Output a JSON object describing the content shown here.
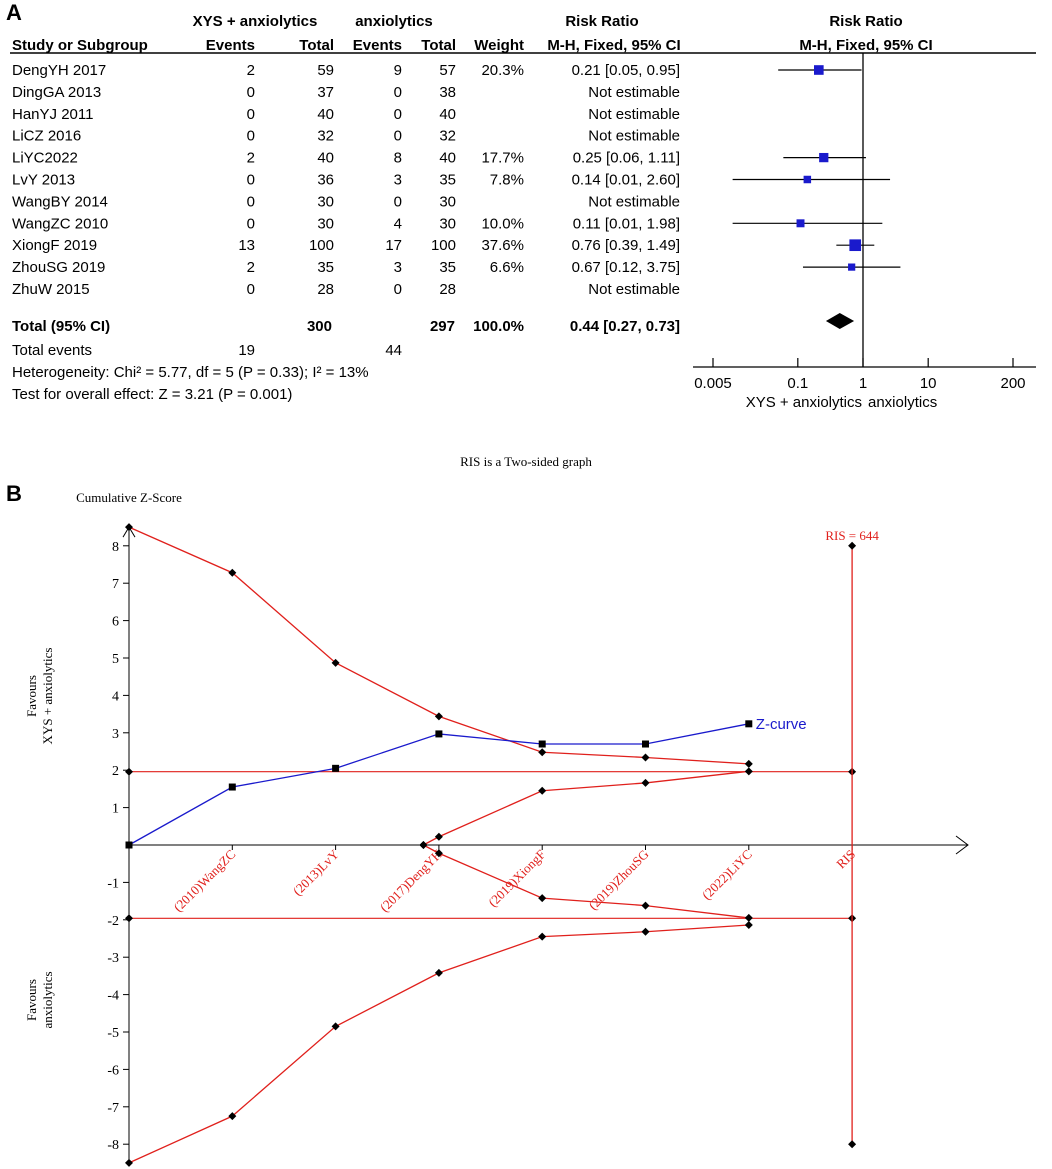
{
  "chart_data": [
    {
      "type": "forest",
      "panel": "A",
      "headers": {
        "group1": "XYS + anxiolytics",
        "group2": "anxiolytics",
        "rr_text": "Risk Ratio",
        "rr_plot": "Risk Ratio",
        "study": "Study or Subgroup",
        "events1": "Events",
        "total1": "Total",
        "events2": "Events",
        "total2": "Total",
        "weight": "Weight",
        "method_text": "M-H, Fixed, 95% CI",
        "method_plot": "M-H, Fixed, 95% CI"
      },
      "studies": [
        {
          "name": "DengYH 2017",
          "e1": "2",
          "t1": "59",
          "e2": "9",
          "t2": "57",
          "weight": "20.3%",
          "ci_text": "0.21 [0.05, 0.95]",
          "rr": 0.21,
          "lo": 0.05,
          "hi": 0.95,
          "w": 20.3
        },
        {
          "name": "DingGA 2013",
          "e1": "0",
          "t1": "37",
          "e2": "0",
          "t2": "38",
          "weight": "",
          "ci_text": "Not estimable",
          "rr": null,
          "lo": null,
          "hi": null,
          "w": 0
        },
        {
          "name": "HanYJ 2011",
          "e1": "0",
          "t1": "40",
          "e2": "0",
          "t2": "40",
          "weight": "",
          "ci_text": "Not estimable",
          "rr": null,
          "lo": null,
          "hi": null,
          "w": 0
        },
        {
          "name": "LiCZ 2016",
          "e1": "0",
          "t1": "32",
          "e2": "0",
          "t2": "32",
          "weight": "",
          "ci_text": "Not estimable",
          "rr": null,
          "lo": null,
          "hi": null,
          "w": 0
        },
        {
          "name": "LiYC2022",
          "e1": "2",
          "t1": "40",
          "e2": "8",
          "t2": "40",
          "weight": "17.7%",
          "ci_text": "0.25 [0.06, 1.11]",
          "rr": 0.25,
          "lo": 0.06,
          "hi": 1.11,
          "w": 17.7
        },
        {
          "name": "LvY 2013",
          "e1": "0",
          "t1": "36",
          "e2": "3",
          "t2": "35",
          "weight": "7.8%",
          "ci_text": "0.14 [0.01, 2.60]",
          "rr": 0.14,
          "lo": 0.01,
          "hi": 2.6,
          "w": 7.8
        },
        {
          "name": "WangBY 2014",
          "e1": "0",
          "t1": "30",
          "e2": "0",
          "t2": "30",
          "weight": "",
          "ci_text": "Not estimable",
          "rr": null,
          "lo": null,
          "hi": null,
          "w": 0
        },
        {
          "name": "WangZC 2010",
          "e1": "0",
          "t1": "30",
          "e2": "4",
          "t2": "30",
          "weight": "10.0%",
          "ci_text": "0.11 [0.01, 1.98]",
          "rr": 0.11,
          "lo": 0.01,
          "hi": 1.98,
          "w": 10.0
        },
        {
          "name": "XiongF 2019",
          "e1": "13",
          "t1": "100",
          "e2": "17",
          "t2": "100",
          "weight": "37.6%",
          "ci_text": "0.76 [0.39, 1.49]",
          "rr": 0.76,
          "lo": 0.39,
          "hi": 1.49,
          "w": 37.6
        },
        {
          "name": "ZhouSG 2019",
          "e1": "2",
          "t1": "35",
          "e2": "3",
          "t2": "35",
          "weight": "6.6%",
          "ci_text": "0.67 [0.12, 3.75]",
          "rr": 0.67,
          "lo": 0.12,
          "hi": 3.75,
          "w": 6.6
        },
        {
          "name": "ZhuW 2015",
          "e1": "0",
          "t1": "28",
          "e2": "0",
          "t2": "28",
          "weight": "",
          "ci_text": "Not estimable",
          "rr": null,
          "lo": null,
          "hi": null,
          "w": 0
        }
      ],
      "total": {
        "name": "Total (95% CI)",
        "t1": "300",
        "t2": "297",
        "weight": "100.0%",
        "ci_text": "0.44 [0.27, 0.73]",
        "rr": 0.44,
        "lo": 0.27,
        "hi": 0.73
      },
      "total_events": {
        "label": "Total events",
        "e1": "19",
        "e2": "44"
      },
      "heterogeneity": "Heterogeneity: Chi² = 5.77, df = 5 (P = 0.33); I² = 13%",
      "overall_effect": "Test for overall effect: Z = 3.21 (P = 0.001)",
      "axis": {
        "scale": "log",
        "ticks": [
          0.005,
          0.1,
          1,
          10,
          200
        ],
        "tick_labels": [
          "0.005",
          "0.1",
          "1",
          "10",
          "200"
        ],
        "favours_left": "XYS + anxiolytics",
        "favours_right": "anxiolytics"
      }
    },
    {
      "type": "line",
      "panel": "B",
      "title": "RIS is a Two-sided graph",
      "ylabel": "Cumulative Z-Score",
      "ylim": [
        -8.5,
        8.5
      ],
      "yticks": [
        8,
        7,
        6,
        5,
        4,
        3,
        2,
        1,
        -1,
        -2,
        -3,
        -4,
        -5,
        -6,
        -7,
        -8
      ],
      "categories": [
        "(2010)WangZC",
        "(2013)LvY",
        "(2017)DengYH",
        "(2019)XiongF",
        "(2019)ZhouSG",
        "(2022)LiYC",
        "RIS"
      ],
      "x_positions": [
        0,
        1,
        2,
        3,
        4,
        5,
        6,
        7
      ],
      "favours_top": [
        "Favours",
        "XYS + anxiolytics"
      ],
      "favours_bottom": [
        "Favours",
        "anxiolytics"
      ],
      "z_curve": {
        "name": "Z-curve",
        "x": [
          0,
          1,
          2,
          3,
          4,
          5,
          6
        ],
        "y": [
          0,
          1.55,
          2.05,
          2.97,
          2.7,
          2.7,
          3.24
        ]
      },
      "upper_benefit_boundary": {
        "x": [
          0,
          1,
          2,
          3,
          4,
          5,
          6
        ],
        "y": [
          8.5,
          7.28,
          4.87,
          3.44,
          2.48,
          2.34,
          2.17
        ]
      },
      "lower_harm_boundary": {
        "x": [
          0,
          1,
          2,
          3,
          4,
          5,
          6
        ],
        "y": [
          -8.5,
          -7.25,
          -4.85,
          -3.42,
          -2.45,
          -2.32,
          -2.14
        ]
      },
      "upper_futility": {
        "x": [
          2.85,
          3,
          4,
          5,
          6
        ],
        "y": [
          0,
          0.22,
          1.45,
          1.66,
          1.97
        ]
      },
      "lower_futility": {
        "x": [
          2.85,
          3,
          4,
          5,
          6
        ],
        "y": [
          0,
          -0.22,
          -1.42,
          -1.62,
          -1.95
        ]
      },
      "conventional_boundaries": [
        1.96,
        -1.96
      ],
      "ris": {
        "label": "RIS = 644",
        "x": 7,
        "top": 8,
        "bottom": -8
      }
    }
  ]
}
